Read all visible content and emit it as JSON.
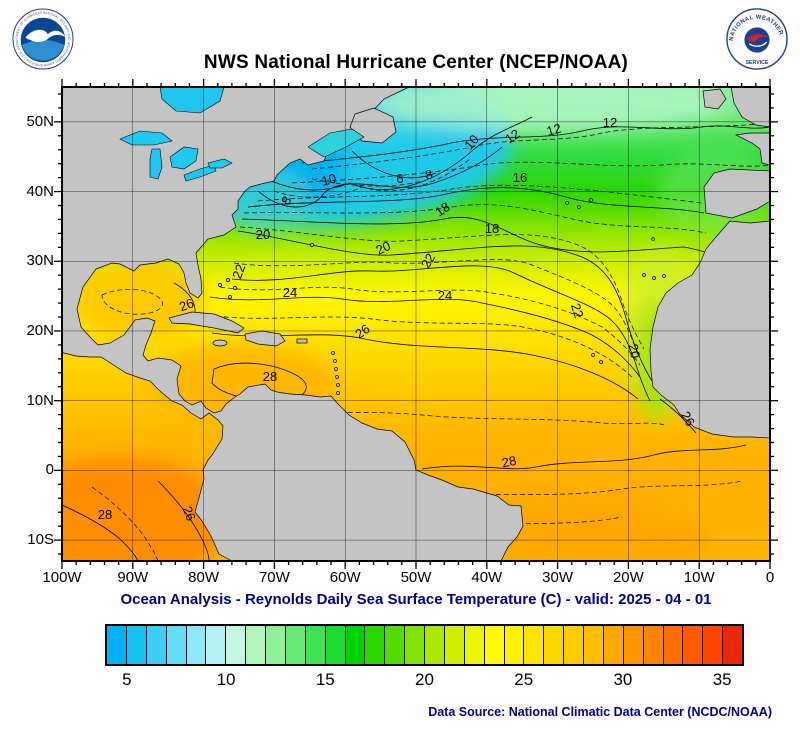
{
  "title": "NWS National Hurricane Center (NCEP/NOAA)",
  "caption": "Ocean Analysis - Reynolds Daily Sea Surface Temperature (C) - valid: 2025 - 04 - 01",
  "data_source": "Data Source: National Climatic Data Center (NCDC/NOAA)",
  "logos": {
    "noaa_ring_text": "NATIONAL OCEANIC AND ATMOSPHERIC ADMINISTRATION - U.S. DEPARTMENT OF COMMERCE",
    "nws_ring_top": "NATIONAL WEATHER",
    "nws_ring_bottom": "SERVICE"
  },
  "colors": {
    "land": "#c4c4c4",
    "caption_text": "#00008b",
    "cold_water": "#00b0f0",
    "warm_water": "#ff8200"
  },
  "chart_data": {
    "type": "heatmap",
    "subtype": "filled_contour_map",
    "title": "NWS National Hurricane Center (NCEP/NOAA)",
    "variable": "Reynolds Daily Sea Surface Temperature",
    "units": "C",
    "valid_date": "2025-04-01",
    "region": "Atlantic basin, 100W-0W / 13S-55N",
    "lon_range_deg": [
      -100,
      0
    ],
    "lat_range_deg": [
      -13,
      55
    ],
    "grid_spacing_deg": 10,
    "minor_tick_deg": 2,
    "contour_interval_c": 1,
    "labeled_contours_c": [
      6,
      8,
      10,
      12,
      16,
      18,
      20,
      22,
      24,
      26,
      28
    ],
    "x_ticks": [
      {
        "label": "100W",
        "deg": 100
      },
      {
        "label": "90W",
        "deg": 90
      },
      {
        "label": "80W",
        "deg": 80
      },
      {
        "label": "70W",
        "deg": 70
      },
      {
        "label": "60W",
        "deg": 60
      },
      {
        "label": "50W",
        "deg": 50
      },
      {
        "label": "40W",
        "deg": 40
      },
      {
        "label": "30W",
        "deg": 30
      },
      {
        "label": "20W",
        "deg": 20
      },
      {
        "label": "10W",
        "deg": 10
      },
      {
        "label": "0",
        "deg": 0
      }
    ],
    "y_ticks": [
      {
        "label": "50N",
        "deg": 50
      },
      {
        "label": "40N",
        "deg": 40
      },
      {
        "label": "30N",
        "deg": 30
      },
      {
        "label": "20N",
        "deg": 20
      },
      {
        "label": "10N",
        "deg": 10
      },
      {
        "label": "0",
        "deg": 0
      },
      {
        "label": "10S",
        "deg": -10
      }
    ],
    "contour_labels": [
      {
        "value": "6",
        "x": 338,
        "y": 96,
        "rot": 0,
        "lon": -52.3,
        "lat": 41.2
      },
      {
        "value": "8",
        "x": 228,
        "y": 116,
        "rot": -55,
        "lon": -67.8,
        "lat": 38.4
      },
      {
        "value": "8",
        "x": 368,
        "y": 92,
        "rot": -15,
        "lon": -48.0,
        "lat": 41.8
      },
      {
        "value": "10",
        "x": 268,
        "y": 97,
        "rot": -15,
        "lon": -62.1,
        "lat": 41.1
      },
      {
        "value": "10",
        "x": 413,
        "y": 58,
        "rot": -50,
        "lon": -41.7,
        "lat": 46.7
      },
      {
        "value": "12",
        "x": 453,
        "y": 53,
        "rot": -35,
        "lon": -36.0,
        "lat": 47.4
      },
      {
        "value": "12",
        "x": 493,
        "y": 47,
        "rot": -15,
        "lon": -30.4,
        "lat": 48.3
      },
      {
        "value": "12",
        "x": 548,
        "y": 40,
        "rot": 0,
        "lon": -22.6,
        "lat": 49.3
      },
      {
        "value": "16",
        "x": 458,
        "y": 95,
        "rot": 0,
        "lon": -35.3,
        "lat": 41.4
      },
      {
        "value": "18",
        "x": 383,
        "y": 126,
        "rot": -35,
        "lon": -45.9,
        "lat": 36.9
      },
      {
        "value": "18",
        "x": 430,
        "y": 146,
        "rot": 0,
        "lon": -39.3,
        "lat": 34.1
      },
      {
        "value": "20",
        "x": 201,
        "y": 152,
        "rot": 0,
        "lon": -71.6,
        "lat": 33.2
      },
      {
        "value": "20",
        "x": 323,
        "y": 165,
        "rot": -25,
        "lon": -54.4,
        "lat": 31.3
      },
      {
        "value": "20",
        "x": 568,
        "y": 265,
        "rot": 78,
        "lon": -19.8,
        "lat": 17.0
      },
      {
        "value": "22",
        "x": 181,
        "y": 186,
        "rot": -70,
        "lon": -74.4,
        "lat": 28.3
      },
      {
        "value": "22",
        "x": 370,
        "y": 176,
        "rot": -60,
        "lon": -47.7,
        "lat": 29.7
      },
      {
        "value": "22",
        "x": 511,
        "y": 225,
        "rot": 72,
        "lon": -27.8,
        "lat": 22.7
      },
      {
        "value": "24",
        "x": 228,
        "y": 210,
        "rot": 0,
        "lon": -67.8,
        "lat": 24.9
      },
      {
        "value": "24",
        "x": 383,
        "y": 213,
        "rot": 0,
        "lon": -45.9,
        "lat": 24.4
      },
      {
        "value": "26",
        "x": 126,
        "y": 222,
        "rot": -20,
        "lon": -82.2,
        "lat": 23.1
      },
      {
        "value": "26",
        "x": 303,
        "y": 248,
        "rot": -35,
        "lon": -57.2,
        "lat": 19.4
      },
      {
        "value": "26",
        "x": 622,
        "y": 334,
        "rot": 60,
        "lon": -12.1,
        "lat": 7.1
      },
      {
        "value": "28",
        "x": 208,
        "y": 294,
        "rot": 0,
        "lon": -70.6,
        "lat": 12.8
      },
      {
        "value": "28",
        "x": 448,
        "y": 379,
        "rot": -12,
        "lon": -36.7,
        "lat": 0.6
      },
      {
        "value": "28",
        "x": 43,
        "y": 432,
        "rot": 0,
        "lon": -93.9,
        "lat": -7.0
      },
      {
        "value": "26",
        "x": 123,
        "y": 428,
        "rot": 70,
        "lon": -82.6,
        "lat": -6.4
      }
    ],
    "colorbar": {
      "min": 4,
      "max": 36,
      "units": "C",
      "tick_labels": [
        5,
        10,
        15,
        20,
        25,
        30,
        35
      ],
      "colors": [
        "#00b0f0",
        "#18c0f2",
        "#3ccef4",
        "#66dcf6",
        "#8fe8f8",
        "#b4f0f4",
        "#c6f6e4",
        "#b2f4bc",
        "#8ff09a",
        "#68ea76",
        "#3ee252",
        "#1cda30",
        "#00d200",
        "#2ad600",
        "#55dc00",
        "#80e200",
        "#aae800",
        "#d0ee00",
        "#e8f400",
        "#fffa00",
        "#fff000",
        "#ffe400",
        "#ffd800",
        "#ffcc00",
        "#ffbe00",
        "#ffaa00",
        "#ff9600",
        "#ff8200",
        "#ff6e00",
        "#ff5a00",
        "#ff4600",
        "#ea2800"
      ]
    }
  }
}
